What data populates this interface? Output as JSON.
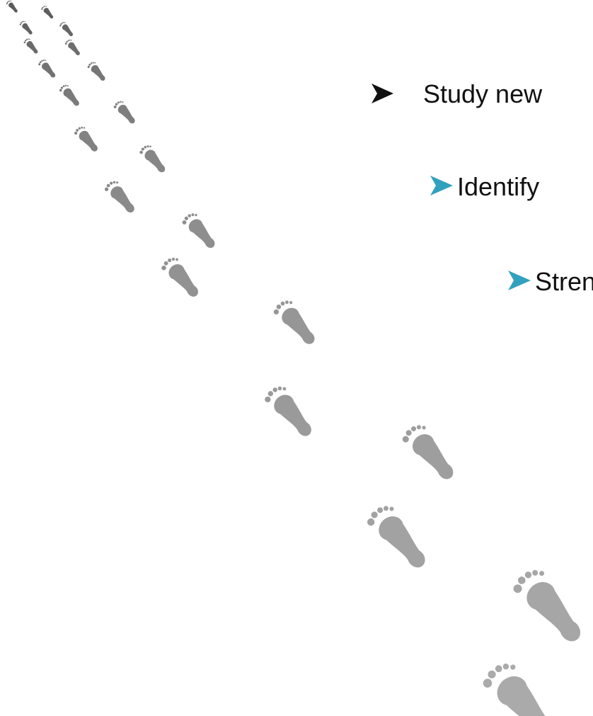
{
  "bullets": [
    {
      "text": "Study new"
    },
    {
      "text": "Identify"
    },
    {
      "text": "Stren"
    }
  ]
}
